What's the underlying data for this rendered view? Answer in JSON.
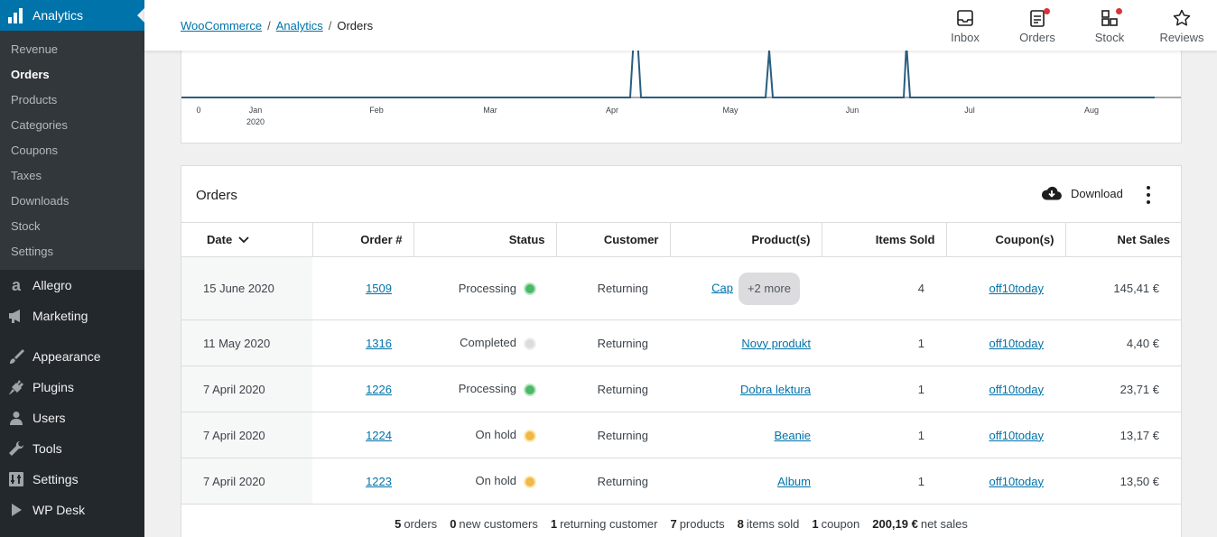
{
  "sidebar": {
    "current": "Analytics",
    "subitems": [
      "Revenue",
      "Orders",
      "Products",
      "Categories",
      "Coupons",
      "Taxes",
      "Downloads",
      "Stock",
      "Settings"
    ],
    "items": [
      "Allegro",
      "Marketing",
      "Appearance",
      "Plugins",
      "Users",
      "Tools",
      "Settings",
      "WP Desk"
    ]
  },
  "header": {
    "breadcrumb": [
      "WooCommerce",
      "Analytics",
      "Orders"
    ],
    "separator": "/",
    "buttons": [
      "Inbox",
      "Orders",
      "Stock",
      "Reviews"
    ]
  },
  "chart_data": {
    "type": "line",
    "x_ticks": [
      "Jan",
      "Feb",
      "Mar",
      "Apr",
      "May",
      "Jun",
      "Jul",
      "Aug"
    ],
    "x_sub": "2020",
    "y_tick": "0",
    "series_color": "#2a5d7f"
  },
  "orders": {
    "title": "Orders",
    "download_label": "Download",
    "columns": [
      "Date",
      "Order #",
      "Status",
      "Customer",
      "Product(s)",
      "Items Sold",
      "Coupon(s)",
      "Net Sales"
    ],
    "rows": [
      {
        "date": "15 June 2020",
        "order": "1509",
        "status": "Processing",
        "status_key": "processing",
        "customer": "Returning",
        "product": "Cap",
        "more": "+2 more",
        "items": "4",
        "coupon": "off10today",
        "net": "145,41 €"
      },
      {
        "date": "11 May 2020",
        "order": "1316",
        "status": "Completed",
        "status_key": "completed",
        "customer": "Returning",
        "product": "Novy produkt",
        "items": "1",
        "coupon": "off10today",
        "net": "4,40 €"
      },
      {
        "date": "7 April 2020",
        "order": "1226",
        "status": "Processing",
        "status_key": "processing",
        "customer": "Returning",
        "product": "Dobra lektura",
        "items": "1",
        "coupon": "off10today",
        "net": "23,71 €"
      },
      {
        "date": "7 April 2020",
        "order": "1224",
        "status": "On hold",
        "status_key": "onhold",
        "customer": "Returning",
        "product": "Beanie",
        "items": "1",
        "coupon": "off10today",
        "net": "13,17 €"
      },
      {
        "date": "7 April 2020",
        "order": "1223",
        "status": "On hold",
        "status_key": "onhold",
        "customer": "Returning",
        "product": "Album",
        "items": "1",
        "coupon": "off10today",
        "net": "13,50 €"
      }
    ],
    "summary": [
      {
        "value": "5",
        "label": "orders"
      },
      {
        "value": "0",
        "label": "new customers"
      },
      {
        "value": "1",
        "label": "returning customer"
      },
      {
        "value": "7",
        "label": "products"
      },
      {
        "value": "8",
        "label": "items sold"
      },
      {
        "value": "1",
        "label": "coupon"
      },
      {
        "value": "200,19 €",
        "label": "net sales"
      }
    ]
  }
}
